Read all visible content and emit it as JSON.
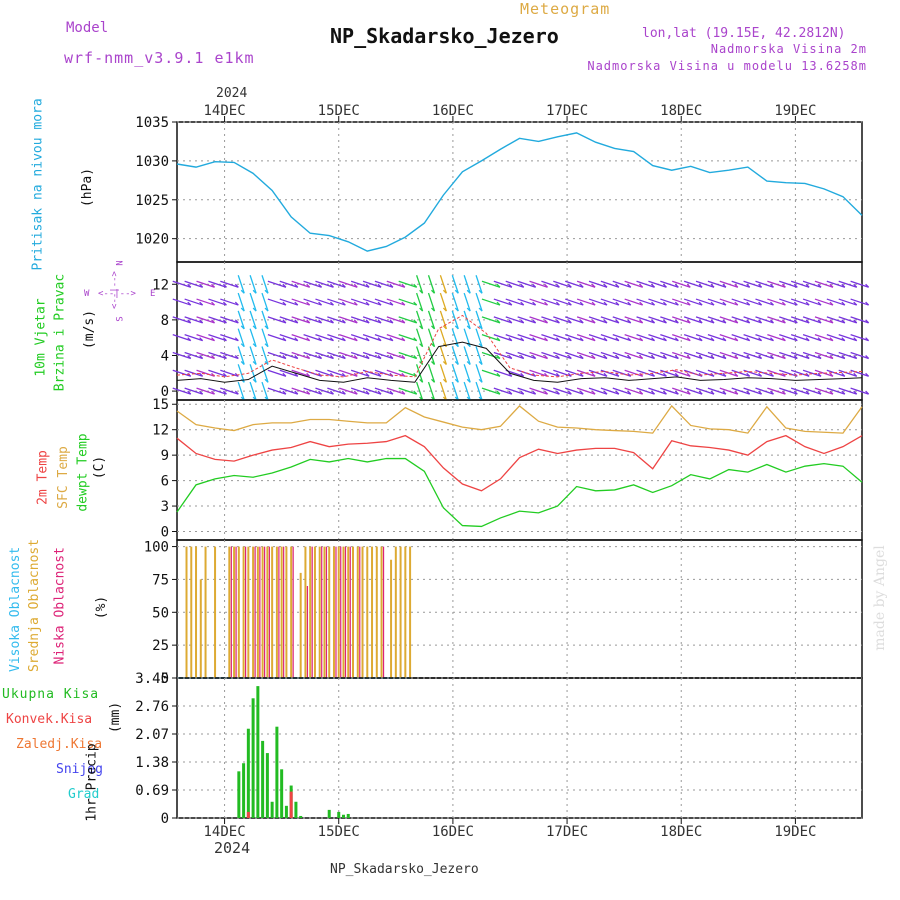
{
  "header": {
    "model_label": "Model",
    "model_name": "wrf-nmm_v3.9.1 e1km",
    "meteogram_label": "Meteogram",
    "station_title": "NP_Skadarsko_Jezero",
    "coords": "lon,lat (19.15E, 42.2812N)",
    "altitude": "Nadmorska Visina 2m",
    "model_altitude": "Nadmorska Visina u modelu 13.6258m",
    "footer_station": "NP_Skadarsko_Jezero",
    "credit": "made by Angel"
  },
  "colors": {
    "pressure": "#22aadd",
    "temp2m": "#ee4444",
    "sfc_temp": "#ddaa44",
    "dewpt": "#22cc22",
    "high_cloud": "#33bbee",
    "mid_cloud": "#ddaa33",
    "low_cloud": "#dd2277",
    "precip_total": "#22bb22",
    "precip_conv": "#ee4444",
    "precip_frozen": "#ee7733",
    "snow": "#4444ee",
    "graupel": "#22cccc",
    "wind_label": "#22cc22",
    "wind_dir_label": "#aa44cc",
    "header_purple": "#aa44cc",
    "meteogram_gold": "#ddaa44"
  },
  "time_axis": {
    "top_year": "2024",
    "bottom_year": "2024",
    "labels": [
      "14DEC",
      "15DEC",
      "16DEC",
      "17DEC",
      "18DEC",
      "19DEC"
    ],
    "range_hours": [
      -10,
      134
    ]
  },
  "direction_legend": {
    "w": "W",
    "e": "E",
    "n": "N",
    "s": "S",
    "arrow_h": "<--|-->",
    "arrow_v": "<--|-->"
  },
  "chart_data": [
    {
      "type": "line",
      "panel": "pressure",
      "ylabel_name": "Pritisak na nivou mora",
      "unit": "(hPa)",
      "ylim": [
        1017,
        1035
      ],
      "yticks": [
        1020,
        1025,
        1030,
        1035
      ],
      "grid": true,
      "x": [
        -10,
        -6,
        -2,
        2,
        6,
        10,
        14,
        18,
        22,
        26,
        30,
        34,
        38,
        42,
        46,
        50,
        54,
        58,
        62,
        66,
        70,
        74,
        78,
        82,
        86,
        90,
        94,
        98,
        102,
        106,
        110,
        114,
        118,
        122,
        126,
        130,
        134
      ],
      "series": [
        {
          "values": [
            1029.6,
            1029.2,
            1029.9,
            1029.8,
            1028.4,
            1026.2,
            1022.8,
            1020.7,
            1020.4,
            1019.6,
            1018.4,
            1019.0,
            1020.2,
            1022.0,
            1025.6,
            1028.6,
            1030.0,
            1031.5,
            1032.9,
            1032.5,
            1033.1,
            1033.6,
            1032.4,
            1031.6,
            1031.2,
            1029.4,
            1028.8,
            1029.3,
            1028.5,
            1028.8,
            1029.2,
            1027.4,
            1027.2,
            1027.1,
            1026.4,
            1025.4,
            1023.0
          ]
        }
      ]
    },
    {
      "type": "line",
      "panel": "wind",
      "ylabel_name": "10m Vjetar",
      "ylabel_sub": "Brzina i Pravac",
      "unit": "(m/s)",
      "ylim": [
        -1,
        14.5
      ],
      "yticks": [
        0,
        4,
        8,
        12
      ],
      "grid": true,
      "x": [
        -10,
        -5,
        0,
        5,
        10,
        15,
        20,
        25,
        30,
        35,
        40,
        45,
        50,
        55,
        60,
        65,
        70,
        75,
        80,
        85,
        90,
        95,
        100,
        105,
        110,
        115,
        120,
        125,
        130,
        134
      ],
      "series": [
        {
          "name_color": "speed",
          "values": [
            1.2,
            1.4,
            1.0,
            1.3,
            2.8,
            2.0,
            1.2,
            1.0,
            1.5,
            1.2,
            1.0,
            5.0,
            5.5,
            4.8,
            2.0,
            1.2,
            1.0,
            1.4,
            1.5,
            1.2,
            1.4,
            1.6,
            1.2,
            1.3,
            1.5,
            1.4,
            1.2,
            1.3,
            1.4,
            1.5
          ]
        },
        {
          "name_color": "gust",
          "values": [
            1.8,
            2.0,
            1.6,
            2.0,
            3.5,
            2.6,
            1.8,
            1.6,
            2.2,
            1.8,
            1.6,
            7.0,
            8.5,
            6.5,
            2.6,
            1.8,
            1.6,
            2.0,
            2.2,
            1.8,
            2.0,
            2.4,
            1.8,
            2.0,
            2.2,
            2.0,
            1.8,
            2.0,
            2.1,
            2.2
          ]
        }
      ]
    },
    {
      "type": "line",
      "panel": "temperature",
      "ylabel_name": "2m Temp",
      "ylabel_sfc": "SFC Temp",
      "ylabel_dew": "dewpt Temp",
      "unit": "(C)",
      "ylim": [
        -1,
        15.5
      ],
      "yticks": [
        0,
        3,
        6,
        9,
        12,
        15
      ],
      "grid": true,
      "x": [
        -10,
        -6,
        -2,
        2,
        6,
        10,
        14,
        18,
        22,
        26,
        30,
        34,
        38,
        42,
        46,
        50,
        54,
        58,
        62,
        66,
        70,
        74,
        78,
        82,
        86,
        90,
        94,
        98,
        102,
        106,
        110,
        114,
        118,
        122,
        126,
        130,
        134
      ],
      "series": [
        {
          "values": [
            11.0,
            9.2,
            8.5,
            8.3,
            9.0,
            9.6,
            9.9,
            10.6,
            10.0,
            10.3,
            10.4,
            10.6,
            11.3,
            10.0,
            7.5,
            5.6,
            4.8,
            6.2,
            8.7,
            9.7,
            9.2,
            9.6,
            9.8,
            9.8,
            9.3,
            7.4,
            10.7,
            10.1,
            9.9,
            9.6,
            9.0,
            10.6,
            11.3,
            10.0,
            9.2,
            10.0,
            11.3
          ]
        },
        {
          "values": [
            14.2,
            12.6,
            12.2,
            11.9,
            12.6,
            12.8,
            12.8,
            13.2,
            13.2,
            13.0,
            12.8,
            12.8,
            14.6,
            13.5,
            12.9,
            12.3,
            12.0,
            12.4,
            14.8,
            13.0,
            12.3,
            12.2,
            12.0,
            11.9,
            11.8,
            11.6,
            14.8,
            12.5,
            12.1,
            12.0,
            11.6,
            14.7,
            12.2,
            11.8,
            11.7,
            11.6,
            14.7
          ]
        },
        {
          "values": [
            2.3,
            5.5,
            6.2,
            6.6,
            6.4,
            6.9,
            7.6,
            8.5,
            8.2,
            8.6,
            8.2,
            8.6,
            8.6,
            7.1,
            2.8,
            0.7,
            0.6,
            1.6,
            2.4,
            2.2,
            3.0,
            5.3,
            4.8,
            4.9,
            5.5,
            4.6,
            5.4,
            6.7,
            6.2,
            7.3,
            7.0,
            7.9,
            7.0,
            7.7,
            8.0,
            7.7,
            5.8
          ]
        }
      ]
    },
    {
      "type": "bar",
      "panel": "cloud",
      "ylabel_high": "Visoka Oblacnost",
      "ylabel_mid": "Srednja Oblacnost",
      "ylabel_low": "Niska Oblacnost",
      "unit": "(%)",
      "ylim": [
        0,
        105
      ],
      "yticks": [
        0,
        25,
        50,
        75,
        100
      ],
      "grid": true,
      "x": [
        -8,
        -7,
        -6,
        -5,
        -4,
        -2,
        1,
        2,
        3,
        4,
        5,
        6,
        7,
        8,
        9,
        10,
        11,
        12,
        13,
        14,
        16,
        17,
        18,
        19,
        20,
        21,
        22,
        23,
        24,
        25,
        26,
        27,
        28,
        29,
        30,
        31,
        32,
        33,
        35,
        36,
        37,
        38,
        39
      ],
      "series": [
        {
          "name_key": "mid",
          "values": [
            100,
            100,
            100,
            75,
            100,
            100,
            100,
            100,
            100,
            100,
            100,
            100,
            100,
            100,
            100,
            100,
            100,
            100,
            100,
            100,
            80,
            100,
            100,
            100,
            100,
            100,
            100,
            100,
            100,
            100,
            100,
            100,
            100,
            100,
            100,
            100,
            100,
            100,
            90,
            100,
            100,
            100,
            100
          ]
        },
        {
          "name_key": "low",
          "values": [
            0,
            0,
            0,
            0,
            0,
            0,
            100,
            100,
            0,
            100,
            0,
            100,
            100,
            100,
            100,
            0,
            100,
            100,
            0,
            100,
            0,
            70,
            100,
            0,
            100,
            100,
            0,
            100,
            100,
            100,
            100,
            0,
            100,
            0,
            0,
            0,
            0,
            100,
            0,
            0,
            0,
            0,
            0
          ]
        }
      ]
    },
    {
      "type": "bar",
      "panel": "precip",
      "ylabel_total": "Ukupna Kisa",
      "ylabel_conv": "Konvek.Kisa",
      "ylabel_frozen": "Zaledj.Kisa",
      "ylabel_snow": "Snijeg",
      "ylabel_graupel": "Grad",
      "ylabel_name": "1hr Precip",
      "unit": "(mm)",
      "ylim": [
        0,
        3.45
      ],
      "yticks": [
        "0",
        "0.69",
        "1.38",
        "2.07",
        "2.76",
        "3.45"
      ],
      "grid": true,
      "x": [
        3,
        4,
        5,
        6,
        7,
        8,
        9,
        10,
        11,
        12,
        13,
        14,
        15,
        16,
        22,
        24,
        25,
        26
      ],
      "series": [
        {
          "name_key": "total",
          "values": [
            1.15,
            1.35,
            2.2,
            2.95,
            3.25,
            1.9,
            1.6,
            0.4,
            2.25,
            1.2,
            0.3,
            0.8,
            0.4,
            0.05,
            0.2,
            0.15,
            0.08,
            0.1
          ]
        },
        {
          "name_key": "conv",
          "values": [
            0,
            0,
            0.15,
            0,
            0,
            0,
            0,
            0,
            0,
            0,
            0,
            0.65,
            0,
            0,
            0,
            0,
            0,
            0
          ]
        }
      ]
    }
  ]
}
